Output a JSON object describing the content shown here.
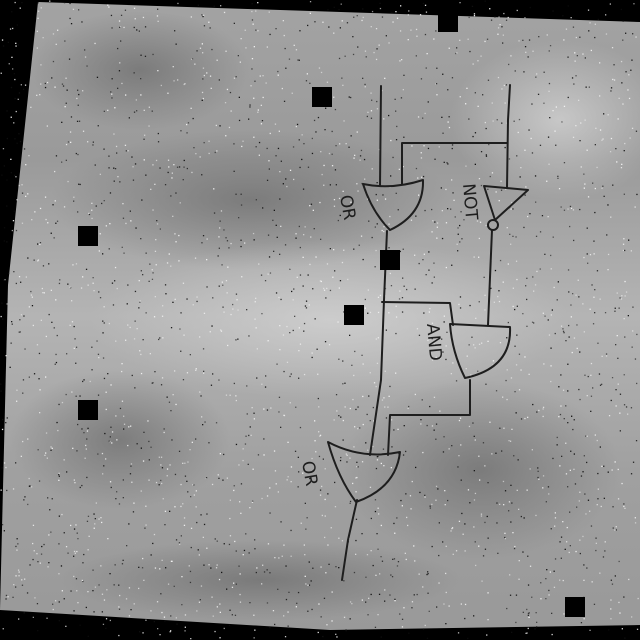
{
  "diagram": {
    "gates": [
      {
        "id": "or-1",
        "type": "OR",
        "label": "OR"
      },
      {
        "id": "not-1",
        "type": "NOT",
        "label": "NOT"
      },
      {
        "id": "and-1",
        "type": "AND",
        "label": "AND"
      },
      {
        "id": "or-2",
        "type": "OR",
        "label": "OR"
      }
    ],
    "connections": [
      {
        "from": "input-left",
        "to": "or-1"
      },
      {
        "from": "input-right",
        "to": "or-1"
      },
      {
        "from": "input-right",
        "to": "not-1"
      },
      {
        "from": "or-1",
        "to": "and-1"
      },
      {
        "from": "not-1",
        "to": "and-1"
      },
      {
        "from": "or-1",
        "to": "or-2"
      },
      {
        "from": "and-1",
        "to": "or-2"
      },
      {
        "from": "or-2",
        "to": "output"
      }
    ],
    "colors": {
      "background": "#000000",
      "paper": "#a9a9a9",
      "ink": "#1e1e1e",
      "blot": "#000000"
    }
  }
}
